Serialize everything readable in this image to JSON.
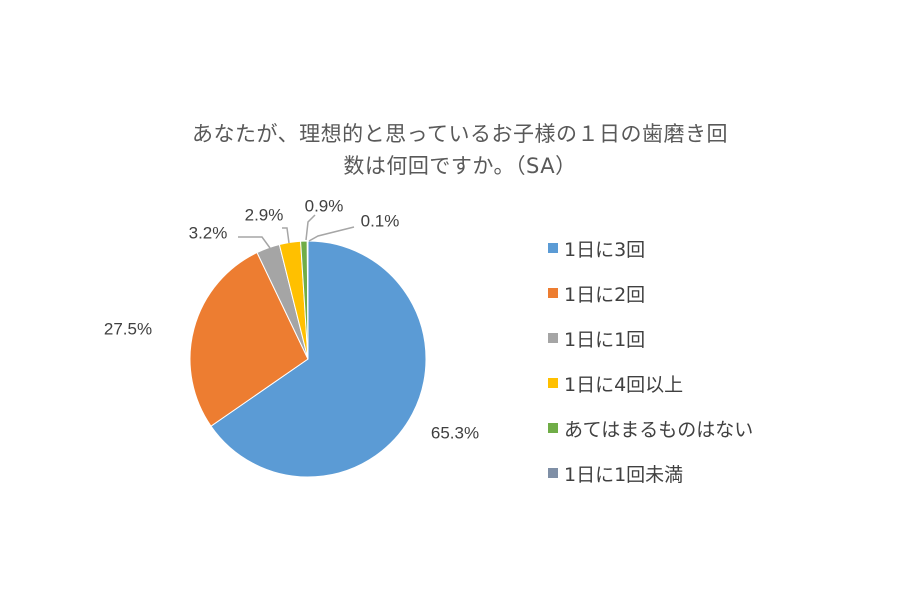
{
  "chart_data": {
    "type": "pie",
    "title_lines": [
      "あなたが、理想的と思っているお子様の１日の歯磨き回",
      "数は何回ですか。（SA）"
    ],
    "start_angle_deg": 0,
    "direction": "clockwise",
    "slices": [
      {
        "label": "1日に3回",
        "value": 65.3,
        "value_label": "65.3%",
        "color": "#5B9BD5"
      },
      {
        "label": "1日に2回",
        "value": 27.5,
        "value_label": "27.5%",
        "color": "#ED7D31"
      },
      {
        "label": "1日に1回",
        "value": 3.2,
        "value_label": "3.2%",
        "color": "#A5A5A5"
      },
      {
        "label": "1日に4回以上",
        "value": 2.9,
        "value_label": "2.9%",
        "color": "#FFC000"
      },
      {
        "label": "あてはまるものはない",
        "value": 0.9,
        "value_label": "0.9%",
        "color": "#70AD47"
      },
      {
        "label": "1日に1回未満",
        "value": 0.1,
        "value_label": "0.1%",
        "color": "#7F8FA6"
      }
    ],
    "legend_position": "right"
  }
}
